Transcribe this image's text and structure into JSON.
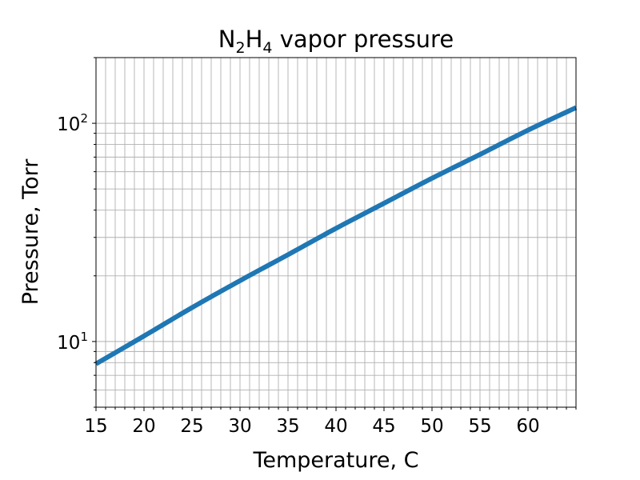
{
  "chart_data": {
    "type": "line",
    "title": {
      "species": "N",
      "sub1": "2",
      "mid": "H",
      "sub2": "4",
      "rest": " vapor pressure"
    },
    "xlabel": "Temperature, C",
    "ylabel": "Pressure, Torr",
    "xlim": [
      15,
      65
    ],
    "ylim": [
      5,
      200
    ],
    "yscale": "log",
    "grid": true,
    "x_ticks": [
      15,
      20,
      25,
      30,
      35,
      40,
      45,
      50,
      55,
      60
    ],
    "x_minor_step": 1,
    "y_ticks": [
      {
        "value": 10,
        "base": "10",
        "exp": "1"
      },
      {
        "value": 100,
        "base": "10",
        "exp": "2"
      }
    ],
    "series": [
      {
        "color": "#1f77b4",
        "x": [
          15,
          20,
          25,
          30,
          35,
          40,
          45,
          50,
          55,
          60,
          65
        ],
        "y": [
          7.9,
          10.6,
          14.3,
          19.0,
          25.0,
          33.0,
          43.0,
          56.0,
          72.0,
          93.0,
          118.0
        ]
      }
    ]
  }
}
